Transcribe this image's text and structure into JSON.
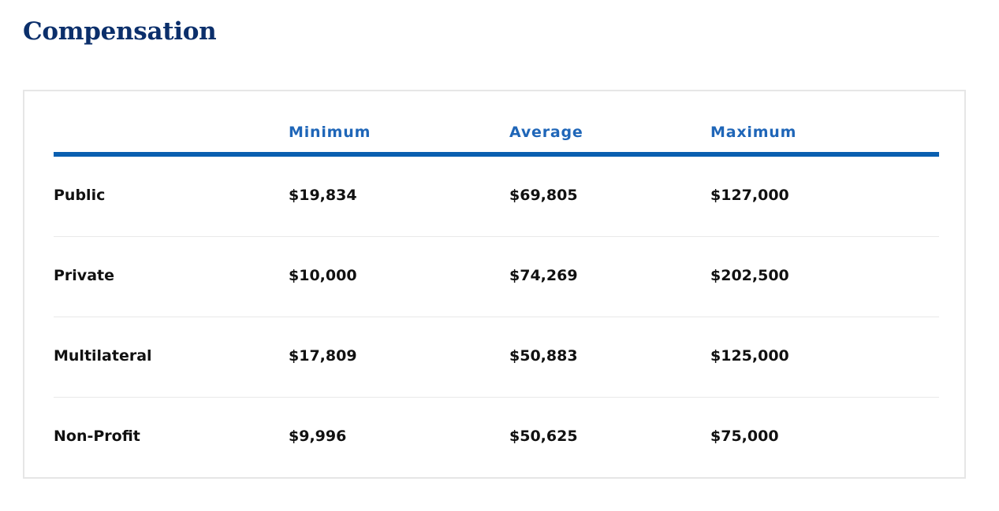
{
  "page": {
    "title": "Compensation"
  },
  "table": {
    "columns": [
      "",
      "Minimum",
      "Average",
      "Maximum"
    ],
    "rows": [
      {
        "sector": "Public",
        "minimum": "$19,834",
        "average": "$69,805",
        "maximum": "$127,000"
      },
      {
        "sector": "Private",
        "minimum": "$10,000",
        "average": "$74,269",
        "maximum": "$202,500"
      },
      {
        "sector": "Multilateral",
        "minimum": "$17,809",
        "average": "$50,883",
        "maximum": "$125,000"
      },
      {
        "sector": "Non-Profit",
        "minimum": "$9,996",
        "average": "$50,625",
        "maximum": "$75,000"
      }
    ]
  },
  "colors": {
    "title": "#0b2f6b",
    "header_text": "#1f66b8",
    "header_rule": "#0a5fb0",
    "row_divider": "#e9e9e9",
    "card_border": "#e6e6e6"
  }
}
